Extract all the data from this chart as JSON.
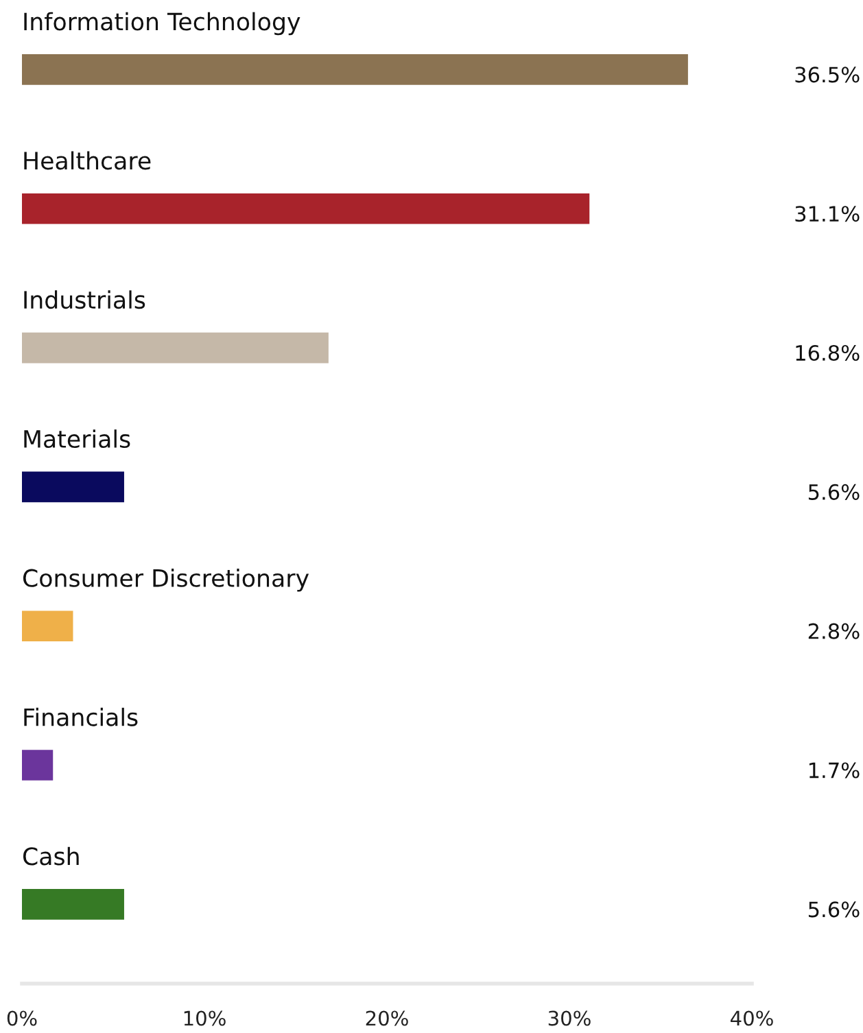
{
  "chart_data": {
    "type": "bar",
    "orientation": "horizontal",
    "categories": [
      "Information Technology",
      "Healthcare",
      "Industrials",
      "Materials",
      "Consumer Discretionary",
      "Financials",
      "Cash"
    ],
    "values": [
      36.5,
      31.1,
      16.8,
      5.6,
      2.8,
      1.7,
      5.6
    ],
    "colors": [
      "#8b7352",
      "#a8232b",
      "#c5b8a8",
      "#0a0a5e",
      "#efb049",
      "#6b359c",
      "#367a25"
    ],
    "value_labels": [
      "36.5%",
      "31.1%",
      "16.8%",
      "5.6%",
      "2.8%",
      "1.7%",
      "5.6%"
    ],
    "xlim": [
      0,
      40
    ],
    "xticks": [
      {
        "value": 0,
        "label": "0%"
      },
      {
        "value": 10,
        "label": "10%"
      },
      {
        "value": 20,
        "label": "20%"
      },
      {
        "value": 30,
        "label": "30%"
      },
      {
        "value": 40,
        "label": "40%"
      }
    ]
  }
}
